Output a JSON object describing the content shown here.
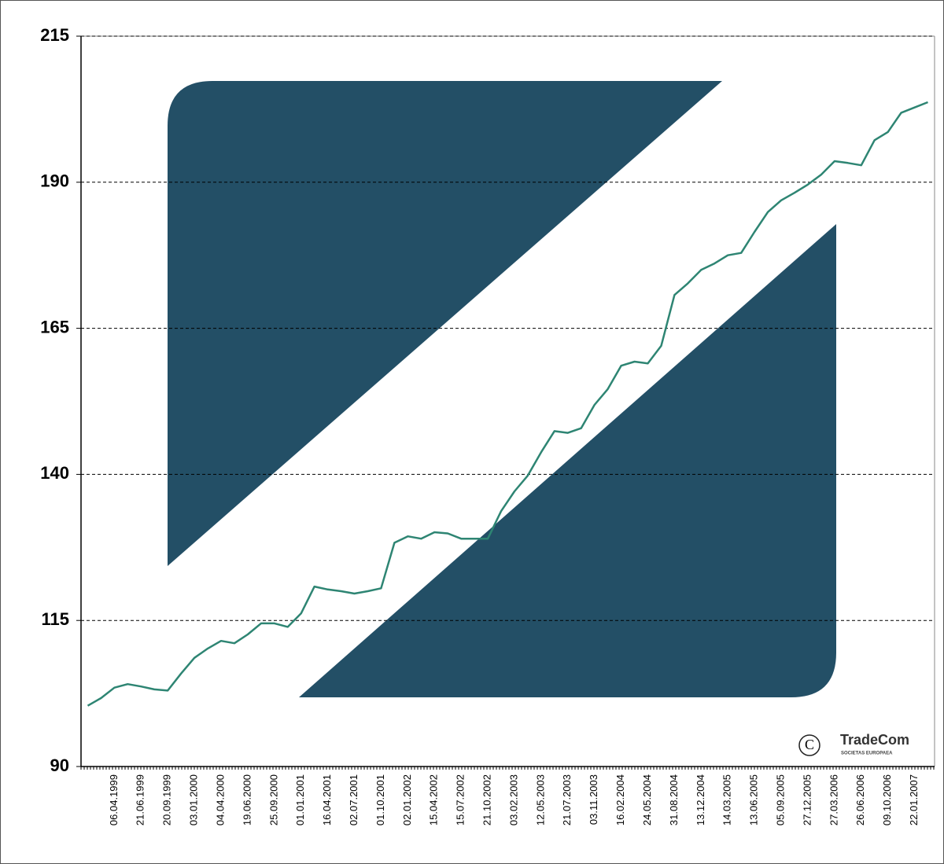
{
  "chart_data": {
    "type": "line",
    "categories": [
      null,
      null,
      "06.04.1999",
      null,
      "21.06.1999",
      null,
      "20.09.1999",
      null,
      "03.01.2000",
      null,
      "04.04.2000",
      null,
      "19.06.2000",
      null,
      "25.09.2000",
      null,
      "01.01.2001",
      null,
      "16.04.2001",
      null,
      "02.07.2001",
      null,
      "01.10.2001",
      null,
      "02.01.2002",
      null,
      "15.04.2002",
      null,
      "15.07.2002",
      null,
      "21.10.2002",
      null,
      "03.02.2003",
      null,
      "12.05.2003",
      null,
      "21.07.2003",
      null,
      "03.11.2003",
      null,
      "16.02.2004",
      null,
      "24.05.2004",
      null,
      "31.08.2004",
      null,
      "13.12.2004",
      null,
      "14.03.2005",
      null,
      "13.06.2005",
      null,
      "05.09.2005",
      null,
      "27.12.2005",
      null,
      "27.03.2006",
      null,
      "26.06.2006",
      null,
      "09.10.2006",
      null,
      "22.01.2007",
      null
    ],
    "series": [
      {
        "color": "#2e8573",
        "values": [
          100.4,
          101.7,
          103.5,
          104.1,
          103.7,
          103.2,
          103.0,
          105.9,
          108.6,
          110.2,
          111.5,
          111.1,
          112.6,
          114.5,
          114.5,
          113.9,
          116.2,
          120.8,
          120.3,
          120.0,
          119.6,
          120.0,
          120.5,
          128.3,
          129.4,
          129.0,
          130.1,
          129.9,
          129.0,
          129.0,
          129.0,
          133.7,
          137.1,
          139.8,
          143.8,
          147.4,
          147.1,
          147.9,
          151.9,
          154.6,
          158.6,
          159.3,
          159.0,
          162.0,
          170.7,
          172.7,
          175.0,
          176.1,
          177.5,
          177.9,
          181.5,
          184.9,
          186.9,
          188.2,
          189.6,
          191.3,
          193.6,
          193.3,
          192.9,
          197.2,
          198.6,
          201.9,
          202.8,
          203.7
        ]
      }
    ],
    "ylim": [
      90,
      215
    ],
    "yticks": [
      90,
      115,
      140,
      165,
      190,
      215
    ],
    "grid": true,
    "annotations": {
      "brand": "TradeCom",
      "tagline": "SOCIETAS EUROPAEA",
      "symbol": "C"
    }
  }
}
